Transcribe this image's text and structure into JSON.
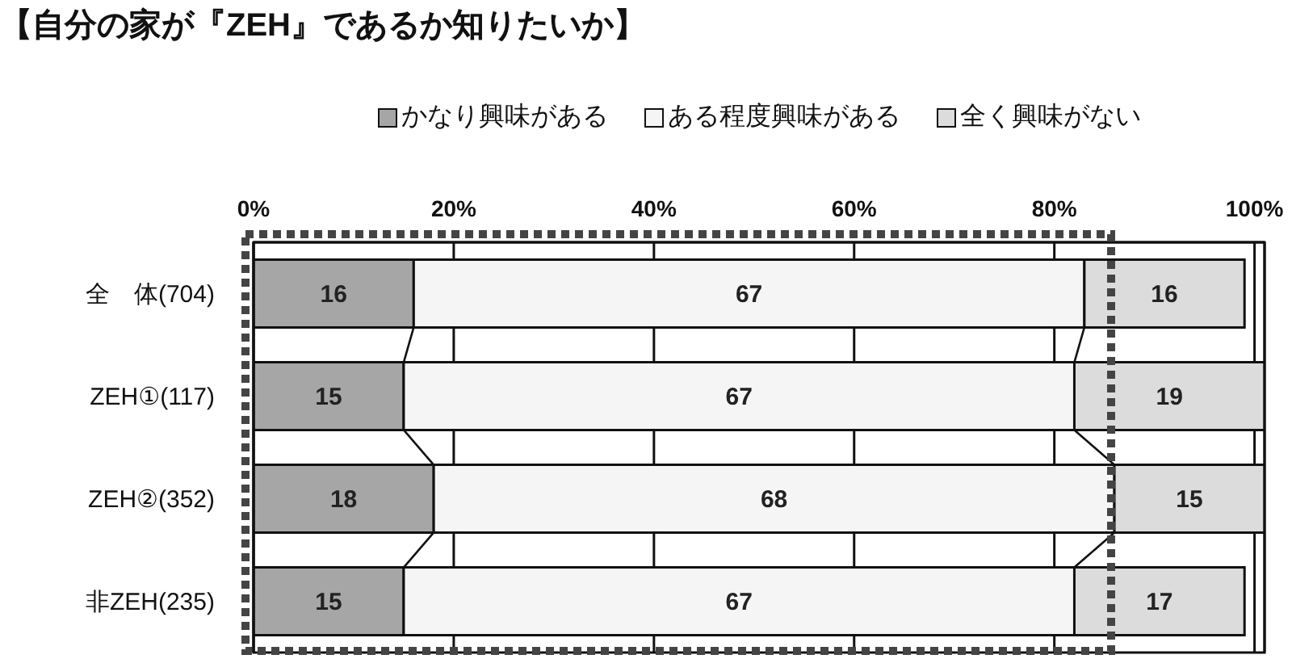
{
  "chart_data": {
    "type": "bar",
    "title": "【自分の家が『ZEH』であるか知りたいか】",
    "orientation": "horizontal",
    "stacked": true,
    "categories": [
      "全　体(704)",
      "ZEH①(117)",
      "ZEH②(352)",
      "非ZEH(235)"
    ],
    "series": [
      {
        "name": "かなり興味がある",
        "color": "#a6a6a6",
        "values": [
          16,
          15,
          18,
          15
        ]
      },
      {
        "name": "ある程度興味がある",
        "color": "#f5f5f5",
        "values": [
          67,
          67,
          68,
          67
        ]
      },
      {
        "name": "全く興味がない",
        "color": "#dcdcdc",
        "values": [
          16,
          19,
          15,
          17
        ]
      }
    ],
    "xlim": [
      0,
      101
    ],
    "xticks": [
      {
        "value": 0,
        "label": "0%"
      },
      {
        "value": 20,
        "label": "20%"
      },
      {
        "value": 40,
        "label": "40%"
      },
      {
        "value": 60,
        "label": "60%"
      },
      {
        "value": 80,
        "label": "80%"
      },
      {
        "value": 100,
        "label": "100%"
      }
    ],
    "grid": "x",
    "legend": "top",
    "data_labels": true
  }
}
